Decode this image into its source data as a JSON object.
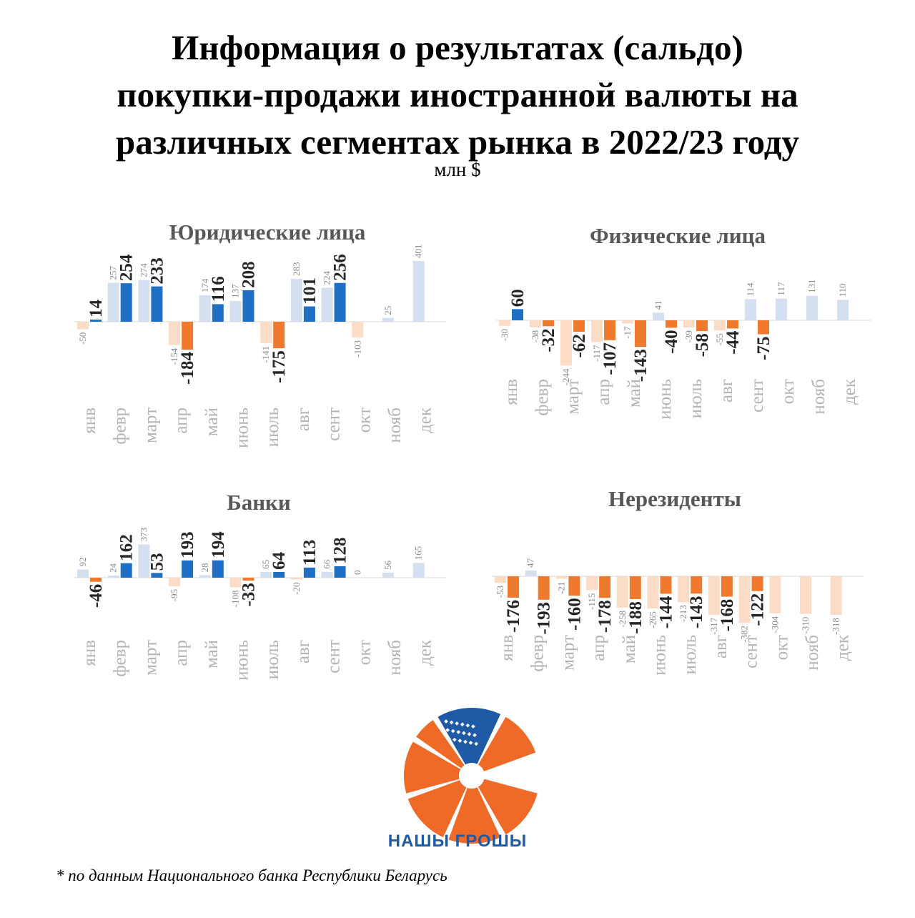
{
  "title_lines": [
    "Информация о результатах (сальдо)",
    "покупки-продажи иностранной валюты на",
    "различных сегментах рынка в 2022/23 году"
  ],
  "units": "млн $",
  "brand": "НАШЫ ГРОШЫ",
  "footnote": "* по данным Национального банка Республики Беларусь",
  "colors": {
    "series_2022": "#d4dfef",
    "series_2023_positive": "#1f6fc5",
    "series_2023_negative": "#ef7a2d",
    "series_2022_negative": "#fbdcc6",
    "axis_labels": "#b4b4b4",
    "logo": "#ef6a27",
    "logo_pattern": "#1f5aa6"
  },
  "chart_data": [
    {
      "type": "bar",
      "title": "Юридические лица",
      "categories": [
        "янв",
        "февр",
        "март",
        "апр",
        "май",
        "июнь",
        "июль",
        "авг",
        "сент",
        "окт",
        "нояб",
        "дек"
      ],
      "series": [
        {
          "values": [
            -50,
            257,
            274,
            -154,
            174,
            137,
            -141,
            283,
            224,
            -103,
            25,
            401
          ]
        },
        {
          "values": [
            14,
            254,
            233,
            -184,
            116,
            208,
            -175,
            101,
            256,
            null,
            null,
            null
          ]
        }
      ]
    },
    {
      "type": "bar",
      "title": "Физические лица",
      "categories": [
        "янв",
        "февр",
        "март",
        "апр",
        "май",
        "июнь",
        "июль",
        "авг",
        "сент",
        "окт",
        "нояб",
        "дек"
      ],
      "series": [
        {
          "values": [
            -30,
            -38,
            -244,
            -117,
            -17,
            41,
            -39,
            -55,
            114,
            117,
            131,
            110
          ]
        },
        {
          "values": [
            60,
            -32,
            -62,
            -107,
            -143,
            -40,
            -58,
            -44,
            -75,
            null,
            null,
            null
          ]
        }
      ]
    },
    {
      "type": "bar",
      "title": "Банки",
      "categories": [
        "янв",
        "февр",
        "март",
        "апр",
        "май",
        "июнь",
        "июль",
        "авг",
        "сент",
        "окт",
        "нояб",
        "дек"
      ],
      "series": [
        {
          "values": [
            92,
            24,
            373,
            -95,
            28,
            -108,
            65,
            -20,
            66,
            0,
            56,
            165
          ]
        },
        {
          "values": [
            -46,
            162,
            53,
            193,
            194,
            -33,
            64,
            113,
            128,
            null,
            null,
            null
          ]
        }
      ]
    },
    {
      "type": "bar",
      "title": "Нерезиденты",
      "categories": [
        "янв",
        "февр",
        "март",
        "апр",
        "май",
        "июнь",
        "июль",
        "авг",
        "сент",
        "окт",
        "нояб",
        "дек"
      ],
      "series": [
        {
          "values": [
            -53,
            47,
            -21,
            -115,
            -258,
            -265,
            -213,
            -317,
            -382,
            -304,
            -310,
            -318
          ]
        },
        {
          "values": [
            -176,
            -193,
            -160,
            -178,
            -188,
            -144,
            -143,
            -168,
            -122,
            null,
            null,
            null
          ]
        }
      ]
    }
  ]
}
